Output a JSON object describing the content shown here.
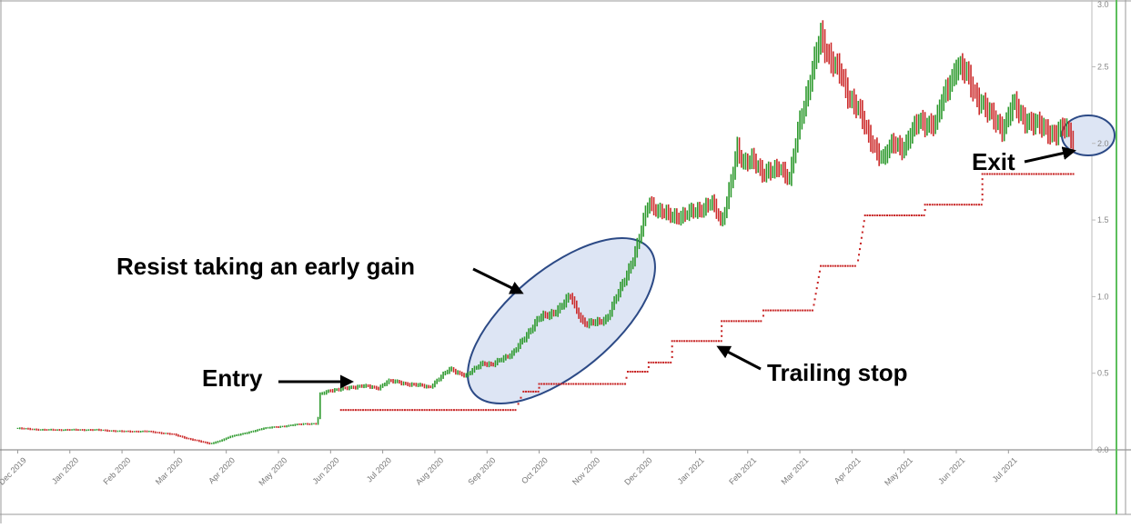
{
  "chart_data": {
    "type": "bar",
    "subtype": "ohlc-price-chart",
    "title": "",
    "xlabel": "",
    "ylabel": "",
    "ylim": [
      0,
      2.9
    ],
    "ytick_labels": [
      "0.0",
      "0.5",
      "1.0",
      "1.5",
      "2.0",
      "2.5",
      "3.0"
    ],
    "ytick_values": [
      0,
      0.5,
      1.0,
      1.5,
      2.0,
      2.5,
      3.0
    ],
    "xtick_labels": [
      "Dec 2019",
      "Jan 2020",
      "Feb 2020",
      "Mar 2020",
      "Apr 2020",
      "May 2020",
      "Jun 2020",
      "Jul 2020",
      "Aug 2020",
      "Sep 2020",
      "Oct 2020",
      "Nov 2020",
      "Dec 2020",
      "Jan 2021",
      "Feb 2021",
      "Mar 2021",
      "Apr 2021",
      "May 2021",
      "Jun 2021",
      "Jul 2021"
    ],
    "xtick_values": [
      0,
      1,
      2,
      3,
      4,
      5,
      6,
      7,
      8,
      9,
      10,
      11,
      12,
      13,
      14,
      15,
      16,
      17,
      18,
      19
    ],
    "x_range": [
      -0.2,
      20.6
    ],
    "grid": false,
    "price_series": {
      "name": "",
      "x": [
        0,
        0.5,
        1,
        1.5,
        2,
        2.5,
        3,
        3.3,
        3.7,
        3.9,
        4.1,
        4.4,
        4.7,
        5,
        5.5,
        5.75,
        5.8,
        6,
        6.3,
        6.6,
        6.9,
        7.1,
        7.5,
        7.9,
        8.1,
        8.3,
        8.6,
        8.9,
        9.1,
        9.3,
        9.5,
        9.7,
        9.9,
        10,
        10.2,
        10.4,
        10.6,
        10.8,
        10.9,
        11.1,
        11.3,
        11.6,
        11.8,
        11.9,
        12,
        12.1,
        12.3,
        12.5,
        12.7,
        13,
        13.3,
        13.5,
        13.8,
        13.9,
        14.1,
        14.3,
        14.6,
        14.8,
        15,
        15.2,
        15.4,
        15.6,
        15.8,
        15.9,
        16.1,
        16.3,
        16.6,
        16.8,
        17,
        17.3,
        17.6,
        17.8,
        18,
        18.2,
        18.4,
        18.6,
        18.8,
        18.9,
        19.1,
        19.3,
        19.5,
        19.7,
        19.9,
        20.1,
        20.25
      ],
      "values": [
        0.14,
        0.13,
        0.13,
        0.13,
        0.12,
        0.12,
        0.1,
        0.07,
        0.04,
        0.06,
        0.09,
        0.11,
        0.14,
        0.15,
        0.17,
        0.17,
        0.36,
        0.39,
        0.4,
        0.42,
        0.4,
        0.45,
        0.43,
        0.41,
        0.47,
        0.53,
        0.48,
        0.57,
        0.55,
        0.6,
        0.63,
        0.72,
        0.82,
        0.86,
        0.88,
        0.93,
        1.0,
        0.86,
        0.82,
        0.83,
        0.86,
        1.08,
        1.25,
        1.35,
        1.48,
        1.62,
        1.56,
        1.52,
        1.53,
        1.55,
        1.62,
        1.47,
        1.96,
        1.85,
        1.92,
        1.78,
        1.86,
        1.75,
        2.16,
        2.4,
        2.7,
        2.55,
        2.43,
        2.33,
        2.25,
        2.05,
        1.9,
        2.0,
        1.98,
        2.15,
        2.12,
        2.35,
        2.5,
        2.45,
        2.31,
        2.2,
        2.14,
        2.1,
        2.25,
        2.17,
        2.12,
        2.1,
        2.06,
        2.1,
        2.02
      ]
    },
    "trailing_stop": {
      "name": "",
      "segments": [
        {
          "x": [
            6.2,
            9.55
          ],
          "value": 0.26
        },
        {
          "x": [
            9.7,
            10.0
          ],
          "value": 0.38
        },
        {
          "x": [
            10.0,
            11.65
          ],
          "value": 0.43
        },
        {
          "x": [
            11.7,
            12.1
          ],
          "value": 0.51
        },
        {
          "x": [
            12.1,
            12.55
          ],
          "value": 0.57
        },
        {
          "x": [
            12.55,
            13.5
          ],
          "value": 0.71
        },
        {
          "x": [
            13.5,
            14.3
          ],
          "value": 0.84
        },
        {
          "x": [
            14.3,
            15.25
          ],
          "value": 0.91
        },
        {
          "x": [
            15.4,
            16.1
          ],
          "value": 1.2
        },
        {
          "x": [
            16.25,
            17.4
          ],
          "value": 1.53
        },
        {
          "x": [
            17.4,
            18.5
          ],
          "value": 1.6
        },
        {
          "x": [
            18.5,
            20.25
          ],
          "value": 1.8
        }
      ]
    },
    "annotations": [
      {
        "label": "Entry",
        "arrow_to_x": 6.8,
        "arrow_to_y": 0.41
      },
      {
        "label": "Resist taking an early gain",
        "arrow_to_x": 9.2,
        "arrow_to_y": 1.03
      },
      {
        "label": "Trailing stop",
        "arrow_to_x": 13.4,
        "arrow_to_y": 0.67
      },
      {
        "label": "Exit",
        "arrow_to_x": 20.0,
        "arrow_to_y": 1.92
      }
    ],
    "highlights": [
      {
        "x_center": 10.3,
        "y_center": 0.9,
        "color": "#dde5f4"
      },
      {
        "x_center": 20.2,
        "y_center": 2.05,
        "color": "#dde5f4"
      }
    ],
    "colors": {
      "up": "#2e9a2e",
      "down": "#cc2b2b",
      "stop": "#c72222",
      "highlight_fill": "#dde5f4",
      "highlight_stroke": "#2c4a86",
      "axis_right": "#5cbf5c"
    }
  }
}
